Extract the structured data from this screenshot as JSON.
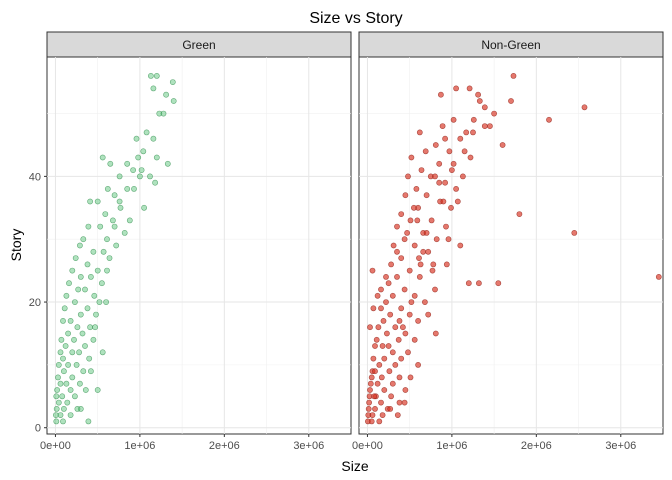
{
  "chart_data": {
    "type": "scatter",
    "title": "Size vs Story",
    "xlabel": "Size",
    "ylabel": "Story",
    "facets": [
      "Green",
      "Non-Green"
    ],
    "xlim": [
      -100000,
      3500000
    ],
    "ylim": [
      -1,
      59
    ],
    "x_ticks": [
      0,
      1000000,
      2000000,
      3000000
    ],
    "x_tick_labels": [
      "0e+00",
      "1e+06",
      "2e+06",
      "3e+06"
    ],
    "y_ticks": [
      0,
      20,
      40
    ],
    "y_tick_labels": [
      "0",
      "20",
      "40"
    ],
    "grid": true,
    "legend": "none",
    "series": [
      {
        "facet": "Green",
        "color": "#4dbf6f",
        "edge": "#2e8b4a",
        "points": [
          [
            1130000,
            56
          ],
          [
            1200000,
            56
          ],
          [
            1390000,
            55
          ],
          [
            1160000,
            54
          ],
          [
            1310000,
            53
          ],
          [
            1400000,
            52
          ],
          [
            1230000,
            50
          ],
          [
            1280000,
            50
          ],
          [
            1080000,
            47
          ],
          [
            1160000,
            46
          ],
          [
            1040000,
            44
          ],
          [
            980000,
            43
          ],
          [
            1200000,
            43
          ],
          [
            560000,
            43
          ],
          [
            650000,
            42
          ],
          [
            1330000,
            42
          ],
          [
            920000,
            41
          ],
          [
            1020000,
            41
          ],
          [
            760000,
            40
          ],
          [
            1120000,
            40
          ],
          [
            1180000,
            39
          ],
          [
            850000,
            38
          ],
          [
            930000,
            38
          ],
          [
            620000,
            38
          ],
          [
            700000,
            37
          ],
          [
            500000,
            36
          ],
          [
            770000,
            35
          ],
          [
            1050000,
            35
          ],
          [
            410000,
            36
          ],
          [
            590000,
            34
          ],
          [
            680000,
            33
          ],
          [
            880000,
            33
          ],
          [
            390000,
            32
          ],
          [
            530000,
            32
          ],
          [
            820000,
            31
          ],
          [
            610000,
            30
          ],
          [
            330000,
            30
          ],
          [
            720000,
            29
          ],
          [
            290000,
            29
          ],
          [
            450000,
            28
          ],
          [
            570000,
            28
          ],
          [
            240000,
            27
          ],
          [
            640000,
            27
          ],
          [
            380000,
            26
          ],
          [
            500000,
            25
          ],
          [
            200000,
            25
          ],
          [
            300000,
            24
          ],
          [
            420000,
            24
          ],
          [
            550000,
            23
          ],
          [
            160000,
            23
          ],
          [
            350000,
            22
          ],
          [
            270000,
            22
          ],
          [
            460000,
            21
          ],
          [
            130000,
            21
          ],
          [
            230000,
            20
          ],
          [
            600000,
            20
          ],
          [
            380000,
            19
          ],
          [
            110000,
            19
          ],
          [
            300000,
            18
          ],
          [
            480000,
            18
          ],
          [
            180000,
            17
          ],
          [
            90000,
            17
          ],
          [
            410000,
            16
          ],
          [
            260000,
            16
          ],
          [
            320000,
            15
          ],
          [
            150000,
            15
          ],
          [
            70000,
            14
          ],
          [
            220000,
            14
          ],
          [
            450000,
            14
          ],
          [
            120000,
            13
          ],
          [
            350000,
            13
          ],
          [
            60000,
            12
          ],
          [
            200000,
            12
          ],
          [
            280000,
            12
          ],
          [
            90000,
            11
          ],
          [
            400000,
            11
          ],
          [
            150000,
            10
          ],
          [
            40000,
            10
          ],
          [
            250000,
            10
          ],
          [
            330000,
            9
          ],
          [
            100000,
            9
          ],
          [
            30000,
            8
          ],
          [
            200000,
            8
          ],
          [
            60000,
            7
          ],
          [
            290000,
            7
          ],
          [
            130000,
            7
          ],
          [
            20000,
            6
          ],
          [
            180000,
            6
          ],
          [
            360000,
            6
          ],
          [
            80000,
            5
          ],
          [
            10000,
            5
          ],
          [
            230000,
            5
          ],
          [
            40000,
            4
          ],
          [
            140000,
            4
          ],
          [
            15000,
            3
          ],
          [
            100000,
            3
          ],
          [
            300000,
            3
          ],
          [
            5000,
            2
          ],
          [
            60000,
            2
          ],
          [
            180000,
            2
          ],
          [
            10000,
            1
          ],
          [
            90000,
            1
          ],
          [
            390000,
            1
          ],
          [
            260000,
            3
          ],
          [
            500000,
            6
          ],
          [
            560000,
            12
          ],
          [
            520000,
            20
          ],
          [
            610000,
            25
          ],
          [
            700000,
            32
          ],
          [
            760000,
            36
          ],
          [
            850000,
            42
          ],
          [
            960000,
            46
          ],
          [
            1000000,
            40
          ],
          [
            470000,
            16
          ],
          [
            420000,
            9
          ]
        ]
      },
      {
        "facet": "Non-Green",
        "color": "#d7301f",
        "edge": "#8b1a10",
        "points": [
          [
            1730000,
            56
          ],
          [
            2570000,
            51
          ],
          [
            2150000,
            49
          ],
          [
            1700000,
            52
          ],
          [
            1310000,
            53
          ],
          [
            1050000,
            54
          ],
          [
            1210000,
            54
          ],
          [
            1500000,
            50
          ],
          [
            1390000,
            51
          ],
          [
            1260000,
            49
          ],
          [
            1020000,
            49
          ],
          [
            1390000,
            48
          ],
          [
            890000,
            48
          ],
          [
            870000,
            53
          ],
          [
            1170000,
            47
          ],
          [
            920000,
            46
          ],
          [
            1100000,
            46
          ],
          [
            620000,
            47
          ],
          [
            1600000,
            45
          ],
          [
            810000,
            45
          ],
          [
            970000,
            44
          ],
          [
            690000,
            44
          ],
          [
            1220000,
            43
          ],
          [
            520000,
            43
          ],
          [
            850000,
            42
          ],
          [
            1020000,
            42
          ],
          [
            640000,
            41
          ],
          [
            1130000,
            40
          ],
          [
            750000,
            40
          ],
          [
            480000,
            40
          ],
          [
            920000,
            39
          ],
          [
            580000,
            38
          ],
          [
            1050000,
            38
          ],
          [
            700000,
            37
          ],
          [
            450000,
            37
          ],
          [
            860000,
            36
          ],
          [
            990000,
            35
          ],
          [
            600000,
            35
          ],
          [
            400000,
            34
          ],
          [
            1800000,
            34
          ],
          [
            760000,
            33
          ],
          [
            510000,
            33
          ],
          [
            930000,
            32
          ],
          [
            350000,
            32
          ],
          [
            660000,
            31
          ],
          [
            2450000,
            31
          ],
          [
            440000,
            30
          ],
          [
            820000,
            30
          ],
          [
            560000,
            29
          ],
          [
            310000,
            29
          ],
          [
            1100000,
            29
          ],
          [
            720000,
            28
          ],
          [
            400000,
            27
          ],
          [
            610000,
            27
          ],
          [
            940000,
            26
          ],
          [
            280000,
            26
          ],
          [
            500000,
            25
          ],
          [
            770000,
            25
          ],
          [
            350000,
            24
          ],
          [
            1320000,
            23
          ],
          [
            1200000,
            23
          ],
          [
            1550000,
            23
          ],
          [
            3450000,
            24
          ],
          [
            620000,
            24
          ],
          [
            250000,
            23
          ],
          [
            440000,
            22
          ],
          [
            800000,
            22
          ],
          [
            300000,
            21
          ],
          [
            560000,
            21
          ],
          [
            220000,
            20
          ],
          [
            680000,
            20
          ],
          [
            400000,
            19
          ],
          [
            160000,
            19
          ],
          [
            500000,
            18
          ],
          [
            270000,
            18
          ],
          [
            720000,
            18
          ],
          [
            190000,
            17
          ],
          [
            600000,
            17
          ],
          [
            330000,
            16
          ],
          [
            130000,
            16
          ],
          [
            450000,
            15
          ],
          [
            230000,
            15
          ],
          [
            810000,
            15
          ],
          [
            110000,
            14
          ],
          [
            370000,
            14
          ],
          [
            560000,
            14
          ],
          [
            180000,
            13
          ],
          [
            90000,
            13
          ],
          [
            300000,
            12
          ],
          [
            480000,
            12
          ],
          [
            70000,
            11
          ],
          [
            200000,
            11
          ],
          [
            400000,
            11
          ],
          [
            140000,
            10
          ],
          [
            600000,
            10
          ],
          [
            60000,
            9
          ],
          [
            260000,
            9
          ],
          [
            50000,
            8
          ],
          [
            170000,
            8
          ],
          [
            380000,
            8
          ],
          [
            40000,
            7
          ],
          [
            120000,
            7
          ],
          [
            300000,
            7
          ],
          [
            30000,
            6
          ],
          [
            200000,
            6
          ],
          [
            450000,
            6
          ],
          [
            25000,
            5
          ],
          [
            100000,
            5
          ],
          [
            280000,
            5
          ],
          [
            20000,
            4
          ],
          [
            160000,
            4
          ],
          [
            380000,
            4
          ],
          [
            15000,
            3
          ],
          [
            90000,
            3
          ],
          [
            240000,
            3
          ],
          [
            10000,
            2
          ],
          [
            60000,
            2
          ],
          [
            180000,
            2
          ],
          [
            5000,
            1
          ],
          [
            50000,
            1
          ],
          [
            140000,
            1
          ],
          [
            270000,
            3
          ],
          [
            330000,
            10
          ],
          [
            420000,
            16
          ],
          [
            520000,
            20
          ],
          [
            630000,
            26
          ],
          [
            700000,
            31
          ],
          [
            900000,
            36
          ],
          [
            1000000,
            41
          ],
          [
            1150000,
            44
          ],
          [
            1250000,
            47
          ],
          [
            1330000,
            52
          ],
          [
            1450000,
            48
          ],
          [
            800000,
            40
          ],
          [
            550000,
            35
          ],
          [
            660000,
            28
          ],
          [
            220000,
            24
          ],
          [
            120000,
            21
          ],
          [
            380000,
            17
          ],
          [
            250000,
            13
          ],
          [
            90000,
            9
          ],
          [
            30000,
            16
          ],
          [
            70000,
            19
          ],
          [
            160000,
            22
          ],
          [
            60000,
            25
          ],
          [
            350000,
            28
          ],
          [
            470000,
            31
          ],
          [
            590000,
            33
          ],
          [
            850000,
            39
          ],
          [
            1070000,
            36
          ],
          [
            960000,
            30
          ],
          [
            780000,
            26
          ],
          [
            440000,
            4
          ],
          [
            360000,
            2
          ],
          [
            80000,
            5
          ],
          [
            510000,
            8
          ]
        ]
      }
    ]
  }
}
